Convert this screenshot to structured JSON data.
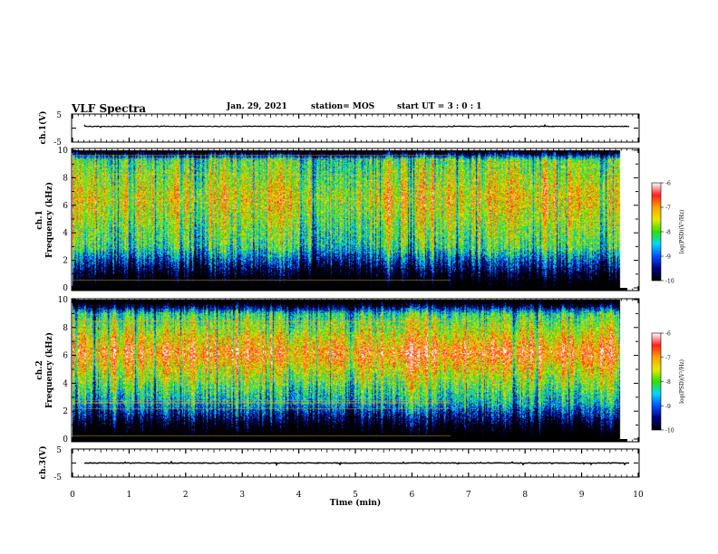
{
  "header": {
    "title": "VLF Spectra",
    "date": "Jan. 29, 2021",
    "station": "station= MOS",
    "start": "start  UT =  3 : 0  : 1"
  },
  "colorscale": {
    "label": "log(PSD)(V²/Hz)",
    "ticks": [
      "-6",
      "-7",
      "-8",
      "-9",
      "-10"
    ],
    "colors": [
      "#ffffff",
      "#ff2020",
      "#ffa000",
      "#e8e800",
      "#30e000",
      "#00d8ff",
      "#0050ff",
      "#000080",
      "#000000"
    ]
  },
  "chart_data": [
    {
      "type": "line",
      "panel": "ch.1 waveform",
      "ylabel": "ch.1(V)",
      "ylim": [
        -5,
        5
      ],
      "yticks": [
        "5",
        "-5"
      ],
      "xlim": [
        0,
        10
      ],
      "trace_level": 0.6
    },
    {
      "type": "heatmap",
      "panel": "ch.1 spectrogram",
      "ylabel": "ch.1\nFrequency (kHz)",
      "ylim": [
        0,
        10
      ],
      "yticks": [
        "0",
        "2",
        "4",
        "6",
        "8",
        "10"
      ],
      "xlim": [
        0,
        10
      ],
      "zlim": [
        -10,
        -6
      ],
      "data_end_min": 9.85
    },
    {
      "type": "heatmap",
      "panel": "ch.2 spectrogram",
      "ylabel": "ch.2\nFrequency (kHz)",
      "ylim": [
        0,
        10
      ],
      "yticks": [
        "0",
        "2",
        "4",
        "6",
        "8",
        "10"
      ],
      "xlim": [
        0,
        10
      ],
      "zlim": [
        -10,
        -6
      ],
      "data_end_min": 9.85
    },
    {
      "type": "line",
      "panel": "ch.3 waveform",
      "ylabel": "ch.3(V)",
      "ylim": [
        -5,
        5
      ],
      "yticks": [
        "5",
        "-5"
      ],
      "xlim": [
        0,
        10
      ],
      "trace_level": 0.0,
      "xlabel": "Time (min)",
      "xticks": [
        "0",
        "1",
        "2",
        "3",
        "4",
        "5",
        "6",
        "7",
        "8",
        "9",
        "10"
      ]
    }
  ]
}
